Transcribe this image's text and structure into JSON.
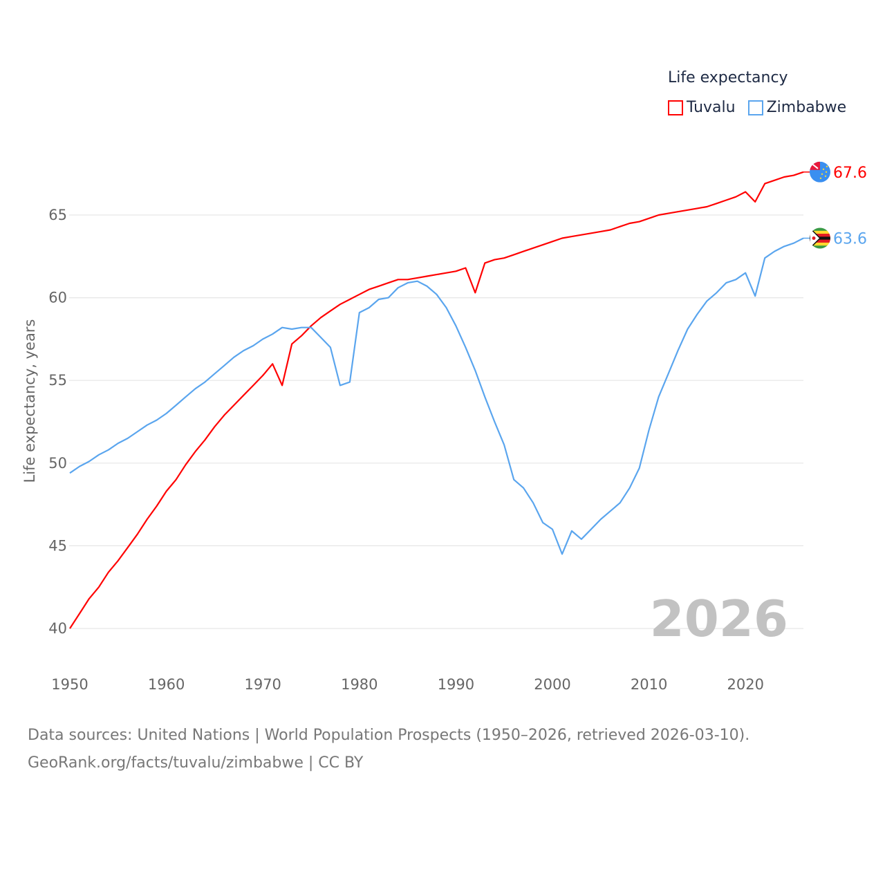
{
  "chart_data": {
    "type": "line",
    "title": "",
    "ylabel": "Life expectancy, years",
    "xlabel": "",
    "xlim": [
      1950,
      2026
    ],
    "ylim": [
      38,
      68
    ],
    "x_ticks": [
      1950,
      1960,
      1970,
      1980,
      1990,
      2000,
      2010,
      2020
    ],
    "y_ticks": [
      40,
      45,
      50,
      55,
      60,
      65
    ],
    "grid": true,
    "legend_title": "Life expectancy",
    "legend_position": "top-right",
    "watermark_year": "2026",
    "x": [
      1950,
      1951,
      1952,
      1953,
      1954,
      1955,
      1956,
      1957,
      1958,
      1959,
      1960,
      1961,
      1962,
      1963,
      1964,
      1965,
      1966,
      1967,
      1968,
      1969,
      1970,
      1971,
      1972,
      1973,
      1974,
      1975,
      1976,
      1977,
      1978,
      1979,
      1980,
      1981,
      1982,
      1983,
      1984,
      1985,
      1986,
      1987,
      1988,
      1989,
      1990,
      1991,
      1992,
      1993,
      1994,
      1995,
      1996,
      1997,
      1998,
      1999,
      2000,
      2001,
      2002,
      2003,
      2004,
      2005,
      2006,
      2007,
      2008,
      2009,
      2010,
      2011,
      2012,
      2013,
      2014,
      2015,
      2016,
      2017,
      2018,
      2019,
      2020,
      2021,
      2022,
      2023,
      2024,
      2025,
      2026
    ],
    "series": [
      {
        "name": "Tuvalu",
        "color": "#ff0000",
        "end_label": "67.6",
        "values": [
          40.0,
          40.9,
          41.8,
          42.5,
          43.4,
          44.1,
          44.9,
          45.7,
          46.6,
          47.4,
          48.3,
          49.0,
          49.9,
          50.7,
          51.4,
          52.2,
          52.9,
          53.5,
          54.1,
          54.7,
          55.3,
          56.0,
          54.7,
          57.2,
          57.7,
          58.3,
          58.8,
          59.2,
          59.6,
          59.9,
          60.2,
          60.5,
          60.7,
          60.9,
          61.1,
          61.1,
          61.2,
          61.3,
          61.4,
          61.5,
          61.6,
          61.8,
          60.3,
          62.1,
          62.3,
          62.4,
          62.6,
          62.8,
          63.0,
          63.2,
          63.4,
          63.6,
          63.7,
          63.8,
          63.9,
          64.0,
          64.1,
          64.3,
          64.5,
          64.6,
          64.8,
          65.0,
          65.1,
          65.2,
          65.3,
          65.4,
          65.5,
          65.7,
          65.9,
          66.1,
          66.4,
          65.8,
          66.9,
          67.1,
          67.3,
          67.4,
          67.6
        ]
      },
      {
        "name": "Zimbabwe",
        "color": "#5aa5ee",
        "end_label": "63.6",
        "values": [
          49.4,
          49.8,
          50.1,
          50.5,
          50.8,
          51.2,
          51.5,
          51.9,
          52.3,
          52.6,
          53.0,
          53.5,
          54.0,
          54.5,
          54.9,
          55.4,
          55.9,
          56.4,
          56.8,
          57.1,
          57.5,
          57.8,
          58.2,
          58.1,
          58.2,
          58.2,
          57.6,
          57.0,
          54.7,
          54.9,
          59.1,
          59.4,
          59.9,
          60.0,
          60.6,
          60.9,
          61.0,
          60.7,
          60.2,
          59.4,
          58.3,
          57.0,
          55.6,
          54.0,
          52.5,
          51.1,
          49.0,
          48.5,
          47.6,
          46.4,
          46.0,
          44.5,
          45.9,
          45.4,
          46.0,
          46.6,
          47.1,
          47.6,
          48.5,
          49.7,
          52.0,
          54.0,
          55.4,
          56.8,
          58.1,
          59.0,
          59.8,
          60.3,
          60.9,
          61.1,
          61.5,
          60.1,
          62.4,
          62.8,
          63.1,
          63.3,
          63.6
        ]
      }
    ]
  },
  "footer": {
    "line1": "Data sources: United Nations | World Population Prospects (1950–2026, retrieved 2026-03-10).",
    "line2": "GeoRank.org/facts/tuvalu/zimbabwe | CC BY"
  }
}
